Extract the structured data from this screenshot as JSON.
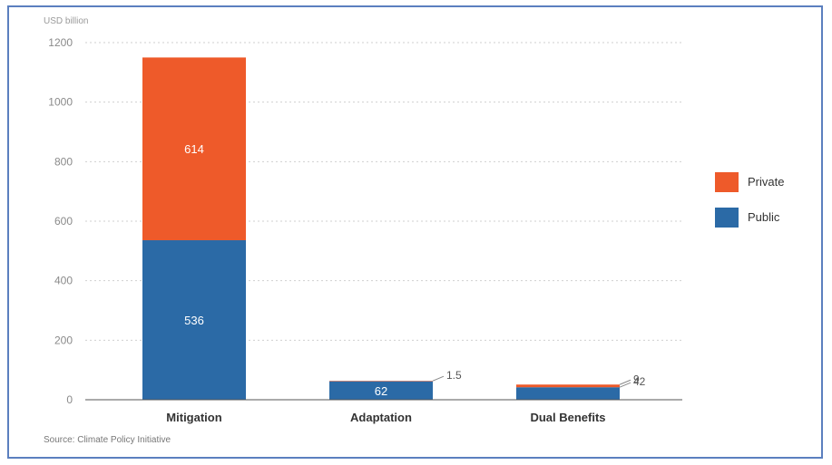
{
  "chart_data": {
    "type": "bar",
    "stacked": true,
    "unit_label": "USD billion",
    "categories": [
      "Mitigation",
      "Adaptation",
      "Dual Benefits"
    ],
    "series": [
      {
        "name": "Public",
        "values": [
          536,
          62,
          42
        ],
        "labels": [
          "536",
          "62",
          "42"
        ],
        "color": "#2b6aa6"
      },
      {
        "name": "Private",
        "values": [
          614,
          1.5,
          9
        ],
        "labels": [
          "614",
          "1.5",
          "9"
        ],
        "color": "#ee5a2a"
      }
    ],
    "ylim": [
      0,
      1200
    ],
    "yticks": [
      0,
      200,
      400,
      600,
      800,
      1000,
      1200
    ],
    "grid": true,
    "legend_position": "right",
    "source": "Source: Climate Policy Initiative"
  }
}
